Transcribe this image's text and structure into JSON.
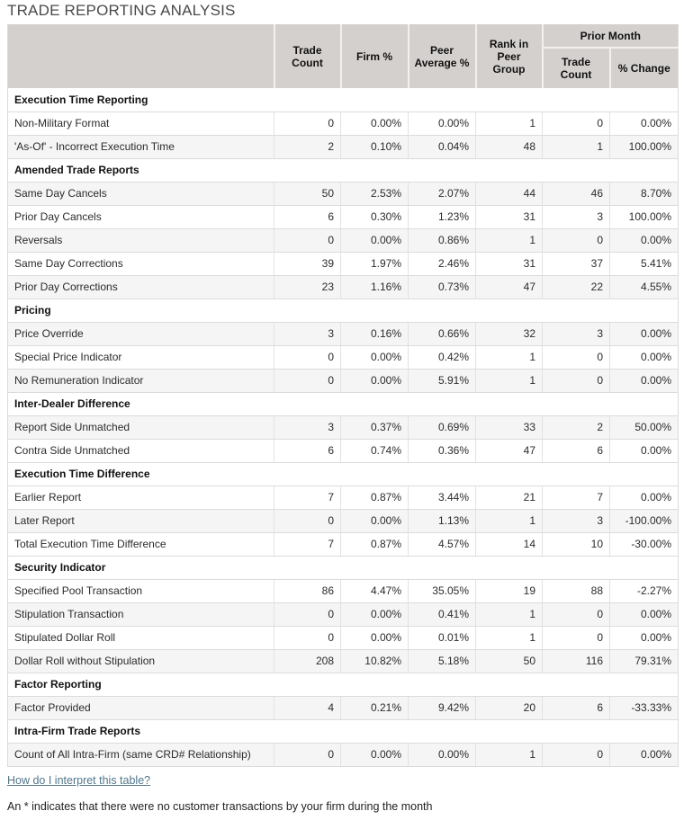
{
  "title": "TRADE REPORTING ANALYSIS",
  "columns": {
    "trade_count": "Trade Count",
    "firm_pct": "Firm %",
    "peer_avg": "Peer Average %",
    "rank": "Rank in Peer Group",
    "prior_month": "Prior Month",
    "pm_trade_count": "Trade Count",
    "pm_pct_change": "% Change"
  },
  "sections": [
    {
      "name": "Execution Time Reporting",
      "rows": [
        {
          "label": "Non-Military Format",
          "values": [
            "0",
            "0.00%",
            "0.00%",
            "1",
            "0",
            "0.00%"
          ]
        },
        {
          "label": "'As-Of' - Incorrect Execution Time",
          "values": [
            "2",
            "0.10%",
            "0.04%",
            "48",
            "1",
            "100.00%"
          ]
        }
      ]
    },
    {
      "name": "Amended Trade Reports",
      "rows": [
        {
          "label": "Same Day Cancels",
          "values": [
            "50",
            "2.53%",
            "2.07%",
            "44",
            "46",
            "8.70%"
          ]
        },
        {
          "label": "Prior Day Cancels",
          "values": [
            "6",
            "0.30%",
            "1.23%",
            "31",
            "3",
            "100.00%"
          ]
        },
        {
          "label": "Reversals",
          "values": [
            "0",
            "0.00%",
            "0.86%",
            "1",
            "0",
            "0.00%"
          ]
        },
        {
          "label": "Same Day Corrections",
          "values": [
            "39",
            "1.97%",
            "2.46%",
            "31",
            "37",
            "5.41%"
          ]
        },
        {
          "label": "Prior Day Corrections",
          "values": [
            "23",
            "1.16%",
            "0.73%",
            "47",
            "22",
            "4.55%"
          ]
        }
      ]
    },
    {
      "name": "Pricing",
      "rows": [
        {
          "label": "Price Override",
          "values": [
            "3",
            "0.16%",
            "0.66%",
            "32",
            "3",
            "0.00%"
          ]
        },
        {
          "label": "Special Price Indicator",
          "values": [
            "0",
            "0.00%",
            "0.42%",
            "1",
            "0",
            "0.00%"
          ]
        },
        {
          "label": "No Remuneration Indicator",
          "values": [
            "0",
            "0.00%",
            "5.91%",
            "1",
            "0",
            "0.00%"
          ]
        }
      ]
    },
    {
      "name": "Inter-Dealer Difference",
      "rows": [
        {
          "label": "Report Side Unmatched",
          "values": [
            "3",
            "0.37%",
            "0.69%",
            "33",
            "2",
            "50.00%"
          ]
        },
        {
          "label": "Contra Side Unmatched",
          "values": [
            "6",
            "0.74%",
            "0.36%",
            "47",
            "6",
            "0.00%"
          ]
        }
      ]
    },
    {
      "name": "Execution Time Difference",
      "rows": [
        {
          "label": "Earlier Report",
          "values": [
            "7",
            "0.87%",
            "3.44%",
            "21",
            "7",
            "0.00%"
          ]
        },
        {
          "label": "Later Report",
          "values": [
            "0",
            "0.00%",
            "1.13%",
            "1",
            "3",
            "-100.00%"
          ]
        },
        {
          "label": "Total Execution Time Difference",
          "values": [
            "7",
            "0.87%",
            "4.57%",
            "14",
            "10",
            "-30.00%"
          ]
        }
      ]
    },
    {
      "name": "Security Indicator",
      "rows": [
        {
          "label": "Specified Pool Transaction",
          "values": [
            "86",
            "4.47%",
            "35.05%",
            "19",
            "88",
            "-2.27%"
          ]
        },
        {
          "label": "Stipulation Transaction",
          "values": [
            "0",
            "0.00%",
            "0.41%",
            "1",
            "0",
            "0.00%"
          ]
        },
        {
          "label": "Stipulated Dollar Roll",
          "values": [
            "0",
            "0.00%",
            "0.01%",
            "1",
            "0",
            "0.00%"
          ]
        },
        {
          "label": "Dollar Roll without Stipulation",
          "values": [
            "208",
            "10.82%",
            "5.18%",
            "50",
            "116",
            "79.31%"
          ]
        }
      ]
    },
    {
      "name": "Factor Reporting",
      "rows": [
        {
          "label": "Factor Provided",
          "values": [
            "4",
            "0.21%",
            "9.42%",
            "20",
            "6",
            "-33.33%"
          ]
        }
      ]
    },
    {
      "name": "Intra-Firm Trade Reports",
      "rows": [
        {
          "label": "Count of All Intra-Firm (same CRD# Relationship)",
          "values": [
            "0",
            "0.00%",
            "0.00%",
            "1",
            "0",
            "0.00%"
          ]
        }
      ]
    }
  ],
  "footer": {
    "interpret_link": "How do I interpret this table?",
    "footnote": "An * indicates that there were no customer transactions by your firm during the month"
  },
  "colors": {
    "header_bg": "#d4d0ce",
    "row_shaded": "#f5f5f5",
    "link": "#53768b"
  }
}
